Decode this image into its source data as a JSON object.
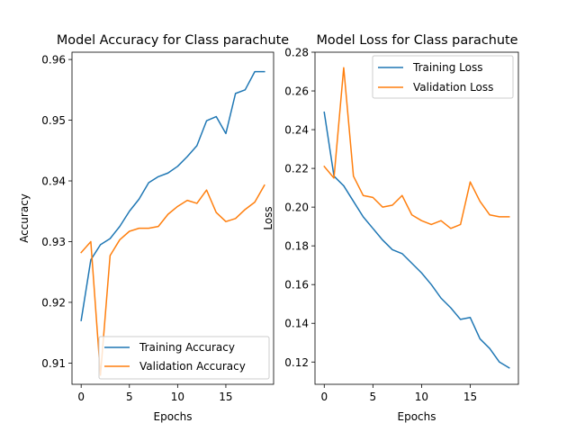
{
  "chart_data": [
    {
      "type": "line",
      "title": "Model Accuracy for Class parachute",
      "xlabel": "Epochs",
      "ylabel": "Accuracy",
      "xlim": [
        -0.95,
        19.95
      ],
      "ylim": [
        0.9065,
        0.9612
      ],
      "x_ticks": [
        0,
        5,
        10,
        15
      ],
      "y_ticks": [
        0.91,
        0.92,
        0.93,
        0.94,
        0.95,
        0.96
      ],
      "y_tick_labels": [
        "0.91",
        "0.92",
        "0.93",
        "0.94",
        "0.95",
        "0.96"
      ],
      "grid": false,
      "legend_position": "lower-right",
      "x": [
        0,
        1,
        2,
        3,
        4,
        5,
        6,
        7,
        8,
        9,
        10,
        11,
        12,
        13,
        14,
        15,
        16,
        17,
        18,
        19
      ],
      "series": [
        {
          "name": "Training Accuracy",
          "color": "#1f77b4",
          "values": [
            0.917,
            0.927,
            0.9295,
            0.9305,
            0.9325,
            0.935,
            0.937,
            0.9397,
            0.9407,
            0.9413,
            0.9424,
            0.944,
            0.9458,
            0.9499,
            0.9506,
            0.9478,
            0.9544,
            0.955,
            0.958,
            0.958
          ]
        },
        {
          "name": "Validation Accuracy",
          "color": "#ff7f0e",
          "values": [
            0.9282,
            0.93,
            0.908,
            0.9277,
            0.9303,
            0.9317,
            0.9322,
            0.9322,
            0.9325,
            0.9345,
            0.9358,
            0.9368,
            0.9363,
            0.9385,
            0.9348,
            0.9333,
            0.9338,
            0.9353,
            0.9365,
            0.9393
          ]
        }
      ]
    },
    {
      "type": "line",
      "title": "Model Loss for Class parachute",
      "xlabel": "Epochs",
      "ylabel": "Loss",
      "xlim": [
        -0.95,
        19.95
      ],
      "ylim": [
        0.1085,
        0.28
      ],
      "x_ticks": [
        0,
        5,
        10,
        15
      ],
      "y_ticks": [
        0.12,
        0.14,
        0.16,
        0.18,
        0.2,
        0.22,
        0.24,
        0.26,
        0.28
      ],
      "y_tick_labels": [
        "0.12",
        "0.14",
        "0.16",
        "0.18",
        "0.20",
        "0.22",
        "0.24",
        "0.26",
        "0.28"
      ],
      "grid": false,
      "legend_position": "upper-right",
      "x": [
        0,
        1,
        2,
        3,
        4,
        5,
        6,
        7,
        8,
        9,
        10,
        11,
        12,
        13,
        14,
        15,
        16,
        17,
        18,
        19
      ],
      "series": [
        {
          "name": "Training Loss",
          "color": "#1f77b4",
          "values": [
            0.249,
            0.216,
            0.211,
            0.203,
            0.195,
            0.189,
            0.183,
            0.178,
            0.176,
            0.171,
            0.166,
            0.16,
            0.153,
            0.148,
            0.142,
            0.143,
            0.132,
            0.127,
            0.12,
            0.117
          ]
        },
        {
          "name": "Validation Loss",
          "color": "#ff7f0e",
          "values": [
            0.221,
            0.215,
            0.272,
            0.216,
            0.206,
            0.205,
            0.2,
            0.201,
            0.206,
            0.196,
            0.193,
            0.191,
            0.193,
            0.189,
            0.191,
            0.213,
            0.203,
            0.196,
            0.195,
            0.195
          ]
        }
      ]
    }
  ]
}
